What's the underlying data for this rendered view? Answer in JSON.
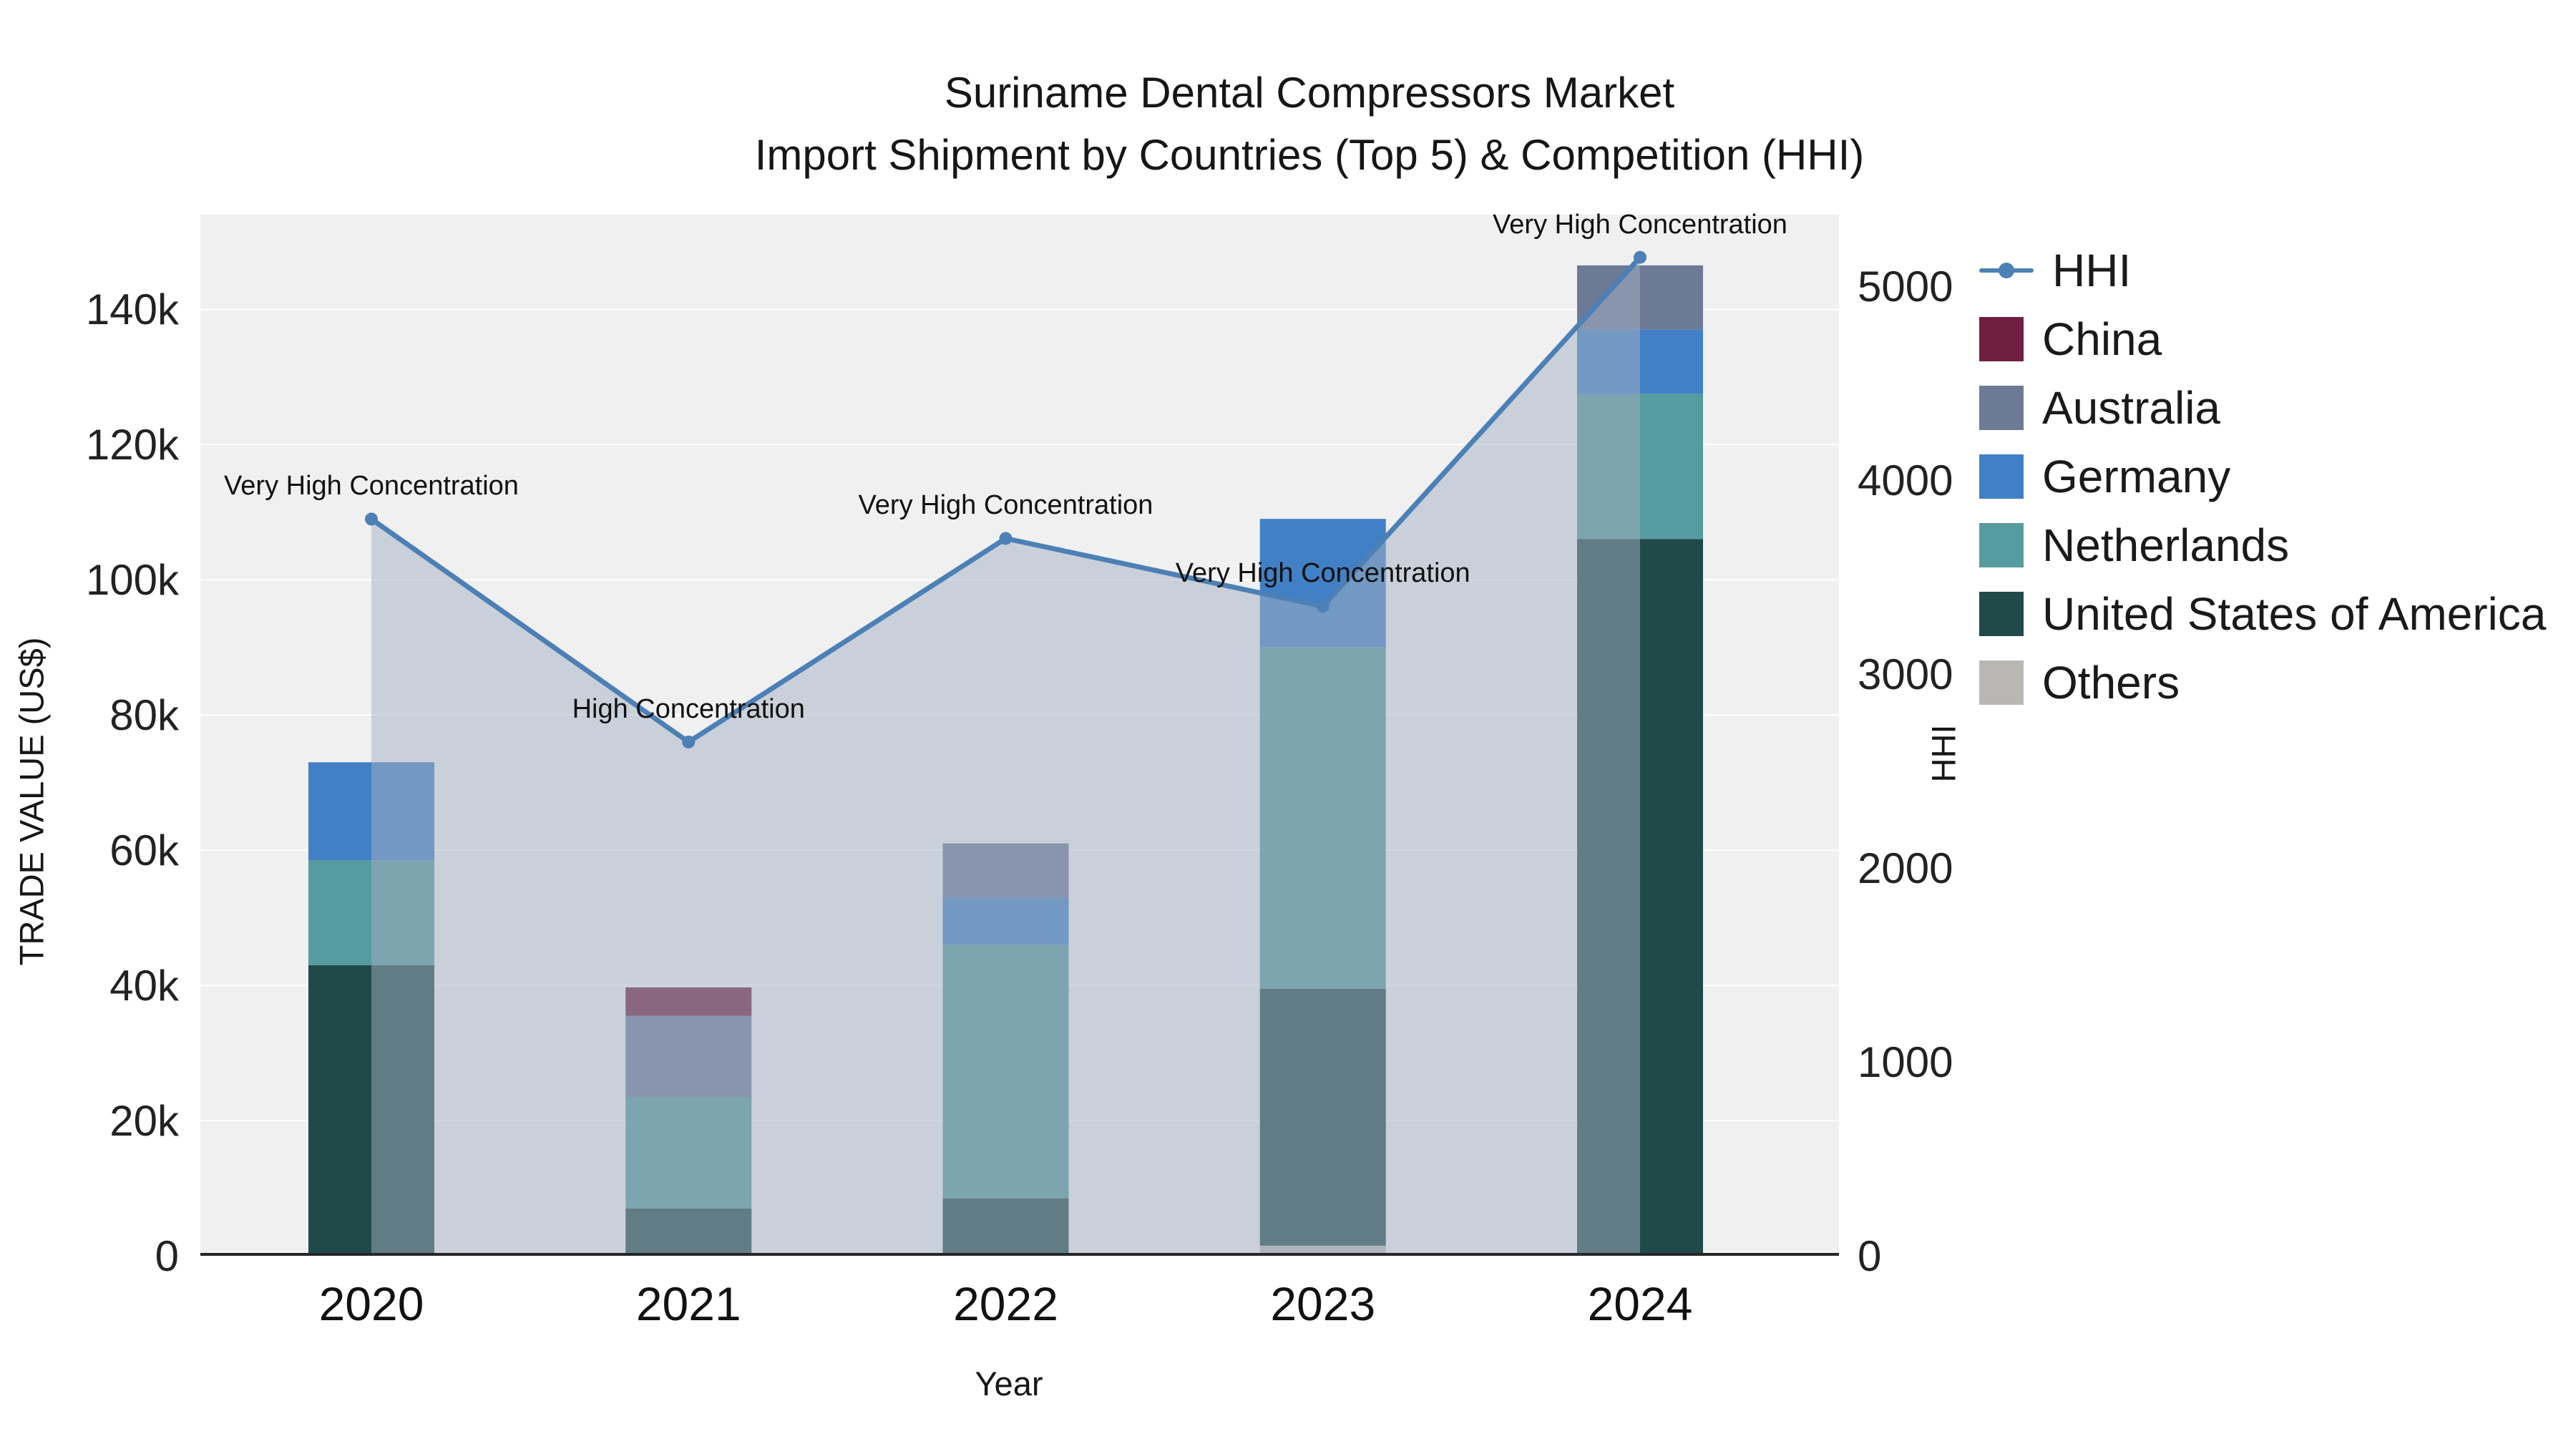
{
  "chart_data": {
    "type": "bar+line",
    "title_line1": "Suriname Dental Compressors Market",
    "title_line2": "Import Shipment by Countries (Top 5) & Competition (HHI)",
    "xlabel": "Year",
    "ylabel_left": "TRADE VALUE (US$)",
    "ylabel_right": "HHI",
    "plot_bg": "#f0f0f1",
    "grid_color": "#ffffff",
    "axis_line_color": "#262626",
    "categories": [
      "2020",
      "2021",
      "2022",
      "2023",
      "2024"
    ],
    "left_axis": {
      "title": "TRADE VALUE (US$)",
      "ticks": [
        0,
        20000,
        40000,
        60000,
        80000,
        100000,
        120000,
        140000
      ],
      "tick_labels": [
        "0",
        "20k",
        "40k",
        "60k",
        "80k",
        "100k",
        "120k",
        "140k"
      ],
      "range": [
        0,
        154000
      ]
    },
    "right_axis": {
      "title": "HHI",
      "ticks": [
        0,
        1000,
        2000,
        3000,
        4000,
        5000
      ],
      "tick_labels": [
        "0",
        "1000",
        "2000",
        "3000",
        "4000",
        "5000"
      ],
      "range": [
        0,
        5370
      ]
    },
    "bar_series": [
      {
        "name": "Others",
        "color": "#b9b7b4",
        "values": [
          0,
          0,
          0,
          1500,
          0
        ]
      },
      {
        "name": "United States of America",
        "color": "#20494a",
        "values": [
          43000,
          7000,
          8500,
          38000,
          106000
        ]
      },
      {
        "name": "Netherlands",
        "color": "#569b9f",
        "values": [
          15500,
          16500,
          37500,
          50500,
          21500
        ]
      },
      {
        "name": "Germany",
        "color": "#4180c4",
        "values": [
          14500,
          0,
          7000,
          19000,
          9500
        ]
      },
      {
        "name": "Australia",
        "color": "#6d7a96",
        "values": [
          0,
          12000,
          8000,
          0,
          9500
        ]
      },
      {
        "name": "China",
        "color": "#711f40",
        "values": [
          0,
          4200,
          0,
          0,
          0
        ]
      }
    ],
    "line_series": {
      "name": "HHI",
      "color": "#4c80b6",
      "fill_color": "rgba(163,175,193,0.5)",
      "values": [
        3800,
        2650,
        3700,
        3350,
        5150
      ]
    },
    "annotations": [
      "Very High Concentration",
      "High Concentration",
      "Very High Concentration",
      "Very High Concentration",
      "Very High Concentration"
    ],
    "legend": [
      {
        "label": "HHI",
        "type": "line",
        "color": "#4c80b6"
      },
      {
        "label": "China",
        "type": "swatch",
        "color": "#711f40"
      },
      {
        "label": "Australia",
        "type": "swatch",
        "color": "#6d7a96"
      },
      {
        "label": "Germany",
        "type": "swatch",
        "color": "#4180c4"
      },
      {
        "label": "Netherlands",
        "type": "swatch",
        "color": "#569b9f"
      },
      {
        "label": "United States of America",
        "type": "swatch",
        "color": "#20494a"
      },
      {
        "label": "Others",
        "type": "swatch",
        "color": "#b9b7b4"
      }
    ]
  }
}
